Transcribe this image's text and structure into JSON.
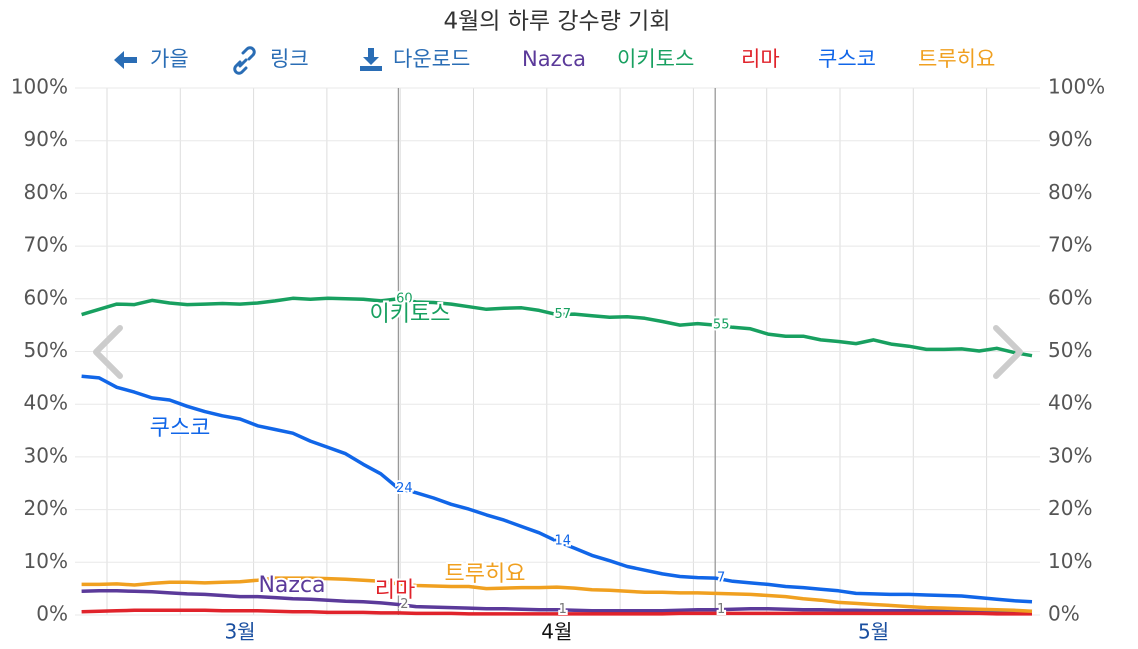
{
  "chart_data": {
    "type": "line",
    "title": "4월의 하루 강수량 기회",
    "toolbar": [
      "가을",
      "링크",
      "다운로드"
    ],
    "categories": [
      null,
      null,
      null,
      null,
      null,
      null,
      null,
      null,
      null,
      "3월",
      null,
      null,
      null,
      null,
      null,
      null,
      null,
      null,
      null,
      null,
      null,
      null,
      null,
      null,
      null,
      null,
      null,
      "4월",
      null,
      null,
      null,
      null,
      null,
      null,
      null,
      null,
      null,
      null,
      null,
      null,
      null,
      null,
      null,
      null,
      null,
      "5월",
      null,
      null,
      null,
      null,
      null,
      null,
      null,
      null,
      null
    ],
    "ylim": [
      0,
      100
    ],
    "yticks": [
      {
        "value": 0,
        "label": "0%"
      },
      {
        "value": 10,
        "label": "10%"
      },
      {
        "value": 20,
        "label": "20%"
      },
      {
        "value": 30,
        "label": "30%"
      },
      {
        "value": 40,
        "label": "40%"
      },
      {
        "value": 50,
        "label": "50%"
      },
      {
        "value": 60,
        "label": "60%"
      },
      {
        "value": 70,
        "label": "70%"
      },
      {
        "value": 80,
        "label": "80%"
      },
      {
        "value": 90,
        "label": "90%"
      },
      {
        "value": 100,
        "label": "100%"
      }
    ],
    "grid": true,
    "series": [
      {
        "name": "Nazca",
        "color": "#5b3a9a",
        "values": [
          4.5,
          4.6,
          4.6,
          4.5,
          4.4,
          4.2,
          4.0,
          3.9,
          3.7,
          3.5,
          3.5,
          3.3,
          3.1,
          3.0,
          2.8,
          2.6,
          2.5,
          2.3,
          2,
          1.6,
          1.5,
          1.4,
          1.3,
          1.2,
          1.2,
          1.1,
          1.0,
          1,
          0.9,
          0.8,
          0.8,
          0.8,
          0.8,
          0.8,
          0.9,
          1.0,
          1,
          1.1,
          1.2,
          1.2,
          1.1,
          1.0,
          1.0,
          0.9,
          0.9,
          0.8,
          0.8,
          0.8,
          0.7,
          0.7,
          0.6,
          0.6,
          0.5,
          0.5,
          0.4
        ],
        "value_labels": [
          null,
          null,
          null,
          null,
          null,
          null,
          null,
          null,
          null,
          null,
          null,
          null,
          null,
          null,
          null,
          null,
          null,
          null,
          "2",
          null,
          null,
          null,
          null,
          null,
          null,
          null,
          null,
          "1",
          null,
          null,
          null,
          null,
          null,
          null,
          null,
          null,
          "1",
          null,
          null,
          null,
          null,
          null,
          null,
          null,
          null,
          null,
          null,
          null,
          null,
          null,
          null,
          null,
          null,
          null,
          null
        ]
      },
      {
        "name": "이키토스",
        "color": "#18a060",
        "values": [
          57.0,
          58.0,
          59.0,
          58.9,
          59.7,
          59.2,
          58.9,
          59.0,
          59.1,
          59.0,
          59.2,
          59.6,
          60.1,
          59.9,
          60.1,
          60.0,
          59.9,
          59.6,
          60,
          59.4,
          59.3,
          59.0,
          58.5,
          58.0,
          58.2,
          58.3,
          57.8,
          57,
          57.1,
          56.8,
          56.5,
          56.6,
          56.3,
          55.7,
          55.0,
          55.3,
          55,
          54.6,
          54.3,
          53.3,
          52.9,
          52.9,
          52.2,
          51.9,
          51.5,
          52.2,
          51.4,
          51.0,
          50.4,
          50.4,
          50.5,
          50.1,
          50.6,
          49.8,
          49.2
        ],
        "value_labels": [
          null,
          null,
          null,
          null,
          null,
          null,
          null,
          null,
          null,
          null,
          null,
          null,
          null,
          null,
          null,
          null,
          null,
          null,
          "60",
          null,
          null,
          null,
          null,
          null,
          null,
          null,
          null,
          "57",
          null,
          null,
          null,
          null,
          null,
          null,
          null,
          null,
          "55",
          null,
          null,
          null,
          null,
          null,
          null,
          null,
          null,
          null,
          null,
          null,
          null,
          null,
          null,
          null,
          null,
          null,
          null
        ]
      },
      {
        "name": "리마",
        "color": "#e0232b",
        "values": [
          0.6,
          0.7,
          0.8,
          0.9,
          0.9,
          0.9,
          0.9,
          0.9,
          0.8,
          0.8,
          0.8,
          0.7,
          0.6,
          0.6,
          0.5,
          0.5,
          0.5,
          0.4,
          0.4,
          0.3,
          0.3,
          0.3,
          0.2,
          0.2,
          0.2,
          0.2,
          0.2,
          0.2,
          0.2,
          0.2,
          0.2,
          0.2,
          0.2,
          0.2,
          0.3,
          0.3,
          0.3,
          0.3,
          0.3,
          0.3,
          0.3,
          0.3,
          0.3,
          0.3,
          0.3,
          0.3,
          0.3,
          0.3,
          0.3,
          0.3,
          0.3,
          0.3,
          0.2,
          0.2,
          0.2
        ]
      },
      {
        "name": "쿠스코",
        "color": "#1166e8",
        "values": [
          45.3,
          45.0,
          43.2,
          42.3,
          41.2,
          40.8,
          39.6,
          38.6,
          37.8,
          37.2,
          35.9,
          35.2,
          34.5,
          33.0,
          31.8,
          30.6,
          28.6,
          26.8,
          24,
          23.2,
          22.2,
          21.0,
          20.1,
          19.0,
          18.0,
          16.8,
          15.6,
          14,
          12.7,
          11.3,
          10.3,
          9.2,
          8.5,
          7.8,
          7.3,
          7.1,
          7,
          6.4,
          6.1,
          5.8,
          5.4,
          5.2,
          4.9,
          4.6,
          4.1,
          4.0,
          3.9,
          3.9,
          3.8,
          3.7,
          3.6,
          3.3,
          3.0,
          2.7,
          2.5
        ],
        "value_labels": [
          null,
          null,
          null,
          null,
          null,
          null,
          null,
          null,
          null,
          null,
          null,
          null,
          null,
          null,
          null,
          null,
          null,
          null,
          "24",
          null,
          null,
          null,
          null,
          null,
          null,
          null,
          null,
          "14",
          null,
          null,
          null,
          null,
          null,
          null,
          null,
          null,
          "7",
          null,
          null,
          null,
          null,
          null,
          null,
          null,
          null,
          null,
          null,
          null,
          null,
          null,
          null,
          null,
          null,
          null,
          null
        ]
      },
      {
        "name": "트루히요",
        "color": "#f0a020",
        "values": [
          5.8,
          5.8,
          5.9,
          5.7,
          6.0,
          6.2,
          6.2,
          6.1,
          6.2,
          6.3,
          6.6,
          7.0,
          7.0,
          7.0,
          6.9,
          6.8,
          6.6,
          6.4,
          5.9,
          5.6,
          5.5,
          5.4,
          5.4,
          5.0,
          5.1,
          5.2,
          5.2,
          5.3,
          5.1,
          4.8,
          4.7,
          4.5,
          4.3,
          4.3,
          4.2,
          4.2,
          4.1,
          4.0,
          3.9,
          3.7,
          3.5,
          3.1,
          2.8,
          2.4,
          2.2,
          2.0,
          1.8,
          1.6,
          1.4,
          1.3,
          1.2,
          1.1,
          1.0,
          0.9,
          0.7
        ]
      }
    ]
  }
}
